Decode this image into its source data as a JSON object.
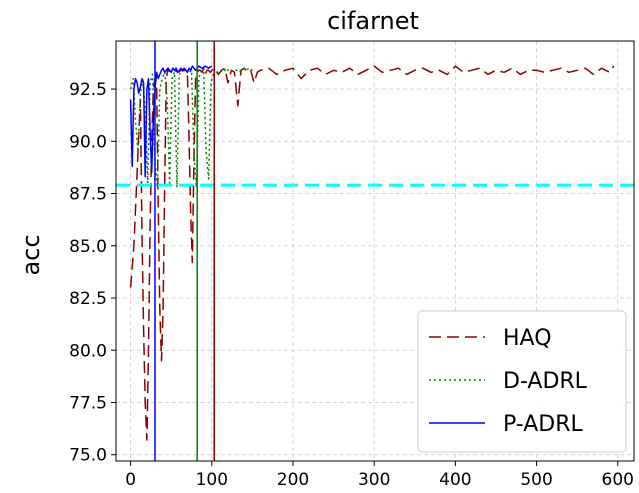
{
  "chart_data": {
    "type": "line",
    "title": "cifarnet",
    "xlabel": "",
    "ylabel": "acc",
    "xlim": [
      -18,
      620
    ],
    "ylim": [
      74.7,
      94.8
    ],
    "xticks": [
      0,
      100,
      200,
      300,
      400,
      500,
      600
    ],
    "yticks": [
      75.0,
      77.5,
      80.0,
      82.5,
      85.0,
      87.5,
      90.0,
      92.5
    ],
    "ytick_labels": [
      "75.0",
      "77.5",
      "80.0",
      "82.5",
      "85.0",
      "87.5",
      "90.0",
      "92.5"
    ],
    "grid": true,
    "legend_position": "lower-right",
    "series": [
      {
        "name": "HAQ",
        "color": "#8b0000",
        "style": "dashed",
        "x": [
          0,
          4,
          8,
          12,
          14,
          16,
          18,
          20,
          22,
          24,
          26,
          28,
          30,
          32,
          34,
          36,
          38,
          40,
          42,
          44,
          46,
          48,
          50,
          54,
          58,
          62,
          66,
          70,
          72,
          74,
          76,
          78,
          80,
          82,
          84,
          86,
          88,
          90,
          92,
          94,
          96,
          98,
          100,
          104,
          108,
          112,
          116,
          120,
          124,
          128,
          132,
          136,
          140,
          144,
          148,
          152,
          156,
          160,
          170,
          180,
          190,
          200,
          210,
          220,
          230,
          240,
          250,
          260,
          270,
          280,
          290,
          300,
          310,
          320,
          330,
          340,
          350,
          360,
          370,
          380,
          390,
          400,
          410,
          420,
          430,
          440,
          450,
          460,
          470,
          480,
          490,
          500,
          510,
          520,
          530,
          540,
          550,
          560,
          570,
          580,
          590,
          595
        ],
        "values": [
          83.0,
          85.0,
          88.5,
          92.0,
          85.5,
          81.0,
          77.5,
          75.7,
          80.0,
          86.0,
          90.0,
          92.5,
          93.0,
          92.8,
          87.0,
          82.0,
          79.5,
          82.0,
          88.0,
          93.0,
          93.5,
          93.3,
          93.4,
          93.4,
          93.3,
          93.4,
          93.4,
          93.3,
          90.0,
          86.5,
          84.2,
          89.0,
          93.0,
          93.3,
          93.4,
          93.4,
          93.3,
          93.5,
          93.2,
          93.4,
          93.4,
          93.3,
          93.4,
          93.5,
          93.2,
          93.4,
          93.5,
          92.8,
          93.4,
          93.3,
          91.7,
          93.4,
          93.5,
          93.3,
          93.4,
          92.8,
          93.3,
          93.4,
          93.5,
          93.2,
          93.4,
          93.5,
          93.0,
          93.4,
          93.5,
          93.2,
          93.4,
          93.3,
          93.5,
          93.2,
          93.4,
          93.6,
          93.3,
          93.4,
          93.5,
          93.2,
          93.4,
          93.5,
          93.3,
          93.4,
          93.2,
          93.6,
          93.3,
          93.4,
          93.5,
          93.2,
          93.4,
          93.3,
          93.5,
          93.2,
          93.4,
          93.4,
          93.3,
          93.4,
          93.5,
          93.3,
          93.4,
          93.5,
          93.2,
          93.5,
          93.3,
          93.6
        ]
      },
      {
        "name": "D-ADRL",
        "color": "#008000",
        "style": "dotted",
        "x": [
          0,
          3,
          6,
          9,
          12,
          15,
          18,
          21,
          24,
          27,
          30,
          33,
          36,
          39,
          42,
          45,
          48,
          51,
          54,
          57,
          60,
          63,
          66,
          69,
          72,
          75,
          78,
          81,
          84,
          87,
          90,
          93,
          96,
          99,
          102,
          106,
          110,
          114,
          118,
          122,
          126,
          130,
          134,
          138,
          142,
          146,
          150
        ],
        "values": [
          92.5,
          93.0,
          91.0,
          89.5,
          92.3,
          93.0,
          91.5,
          88.0,
          92.8,
          93.2,
          89.0,
          87.8,
          92.5,
          93.0,
          93.3,
          92.0,
          88.0,
          93.0,
          93.3,
          87.8,
          93.2,
          93.4,
          93.3,
          93.4,
          93.3,
          93.4,
          89.5,
          87.8,
          93.0,
          93.4,
          93.3,
          89.5,
          88.2,
          92.8,
          93.2,
          93.3,
          93.4,
          93.3,
          93.5,
          93.3,
          93.4,
          93.4,
          93.3,
          93.5,
          93.4,
          93.5,
          93.4
        ]
      },
      {
        "name": "P-ADRL",
        "color": "#0000ff",
        "style": "solid",
        "x": [
          0,
          2,
          4,
          6,
          8,
          10,
          12,
          14,
          16,
          18,
          20,
          22,
          24,
          26,
          28,
          30,
          32,
          34,
          36,
          38,
          40,
          42,
          44,
          46,
          48,
          50,
          52,
          54,
          56,
          58,
          60,
          62,
          64,
          66,
          68,
          70,
          72,
          74,
          76,
          78,
          80,
          84,
          88,
          92,
          96,
          100
        ],
        "values": [
          92.0,
          88.8,
          92.5,
          93.0,
          92.8,
          92.3,
          92.6,
          93.0,
          92.8,
          88.3,
          92.5,
          93.0,
          90.5,
          88.5,
          91.0,
          92.5,
          93.3,
          93.0,
          93.2,
          93.4,
          93.5,
          93.3,
          93.4,
          93.5,
          93.4,
          93.3,
          93.5,
          93.4,
          93.5,
          93.3,
          93.4,
          93.5,
          93.4,
          93.5,
          93.4,
          93.3,
          93.5,
          93.4,
          93.6,
          93.5,
          93.4,
          93.6,
          93.5,
          93.6,
          93.5,
          93.6
        ]
      }
    ],
    "hlines": [
      {
        "y": 87.9,
        "color": "#00ffff",
        "style": "dashed"
      }
    ],
    "vlines": [
      {
        "x": 30,
        "color": "#0000ff"
      },
      {
        "x": 82,
        "color": "#008000"
      },
      {
        "x": 103,
        "color": "#8b0000"
      }
    ]
  }
}
